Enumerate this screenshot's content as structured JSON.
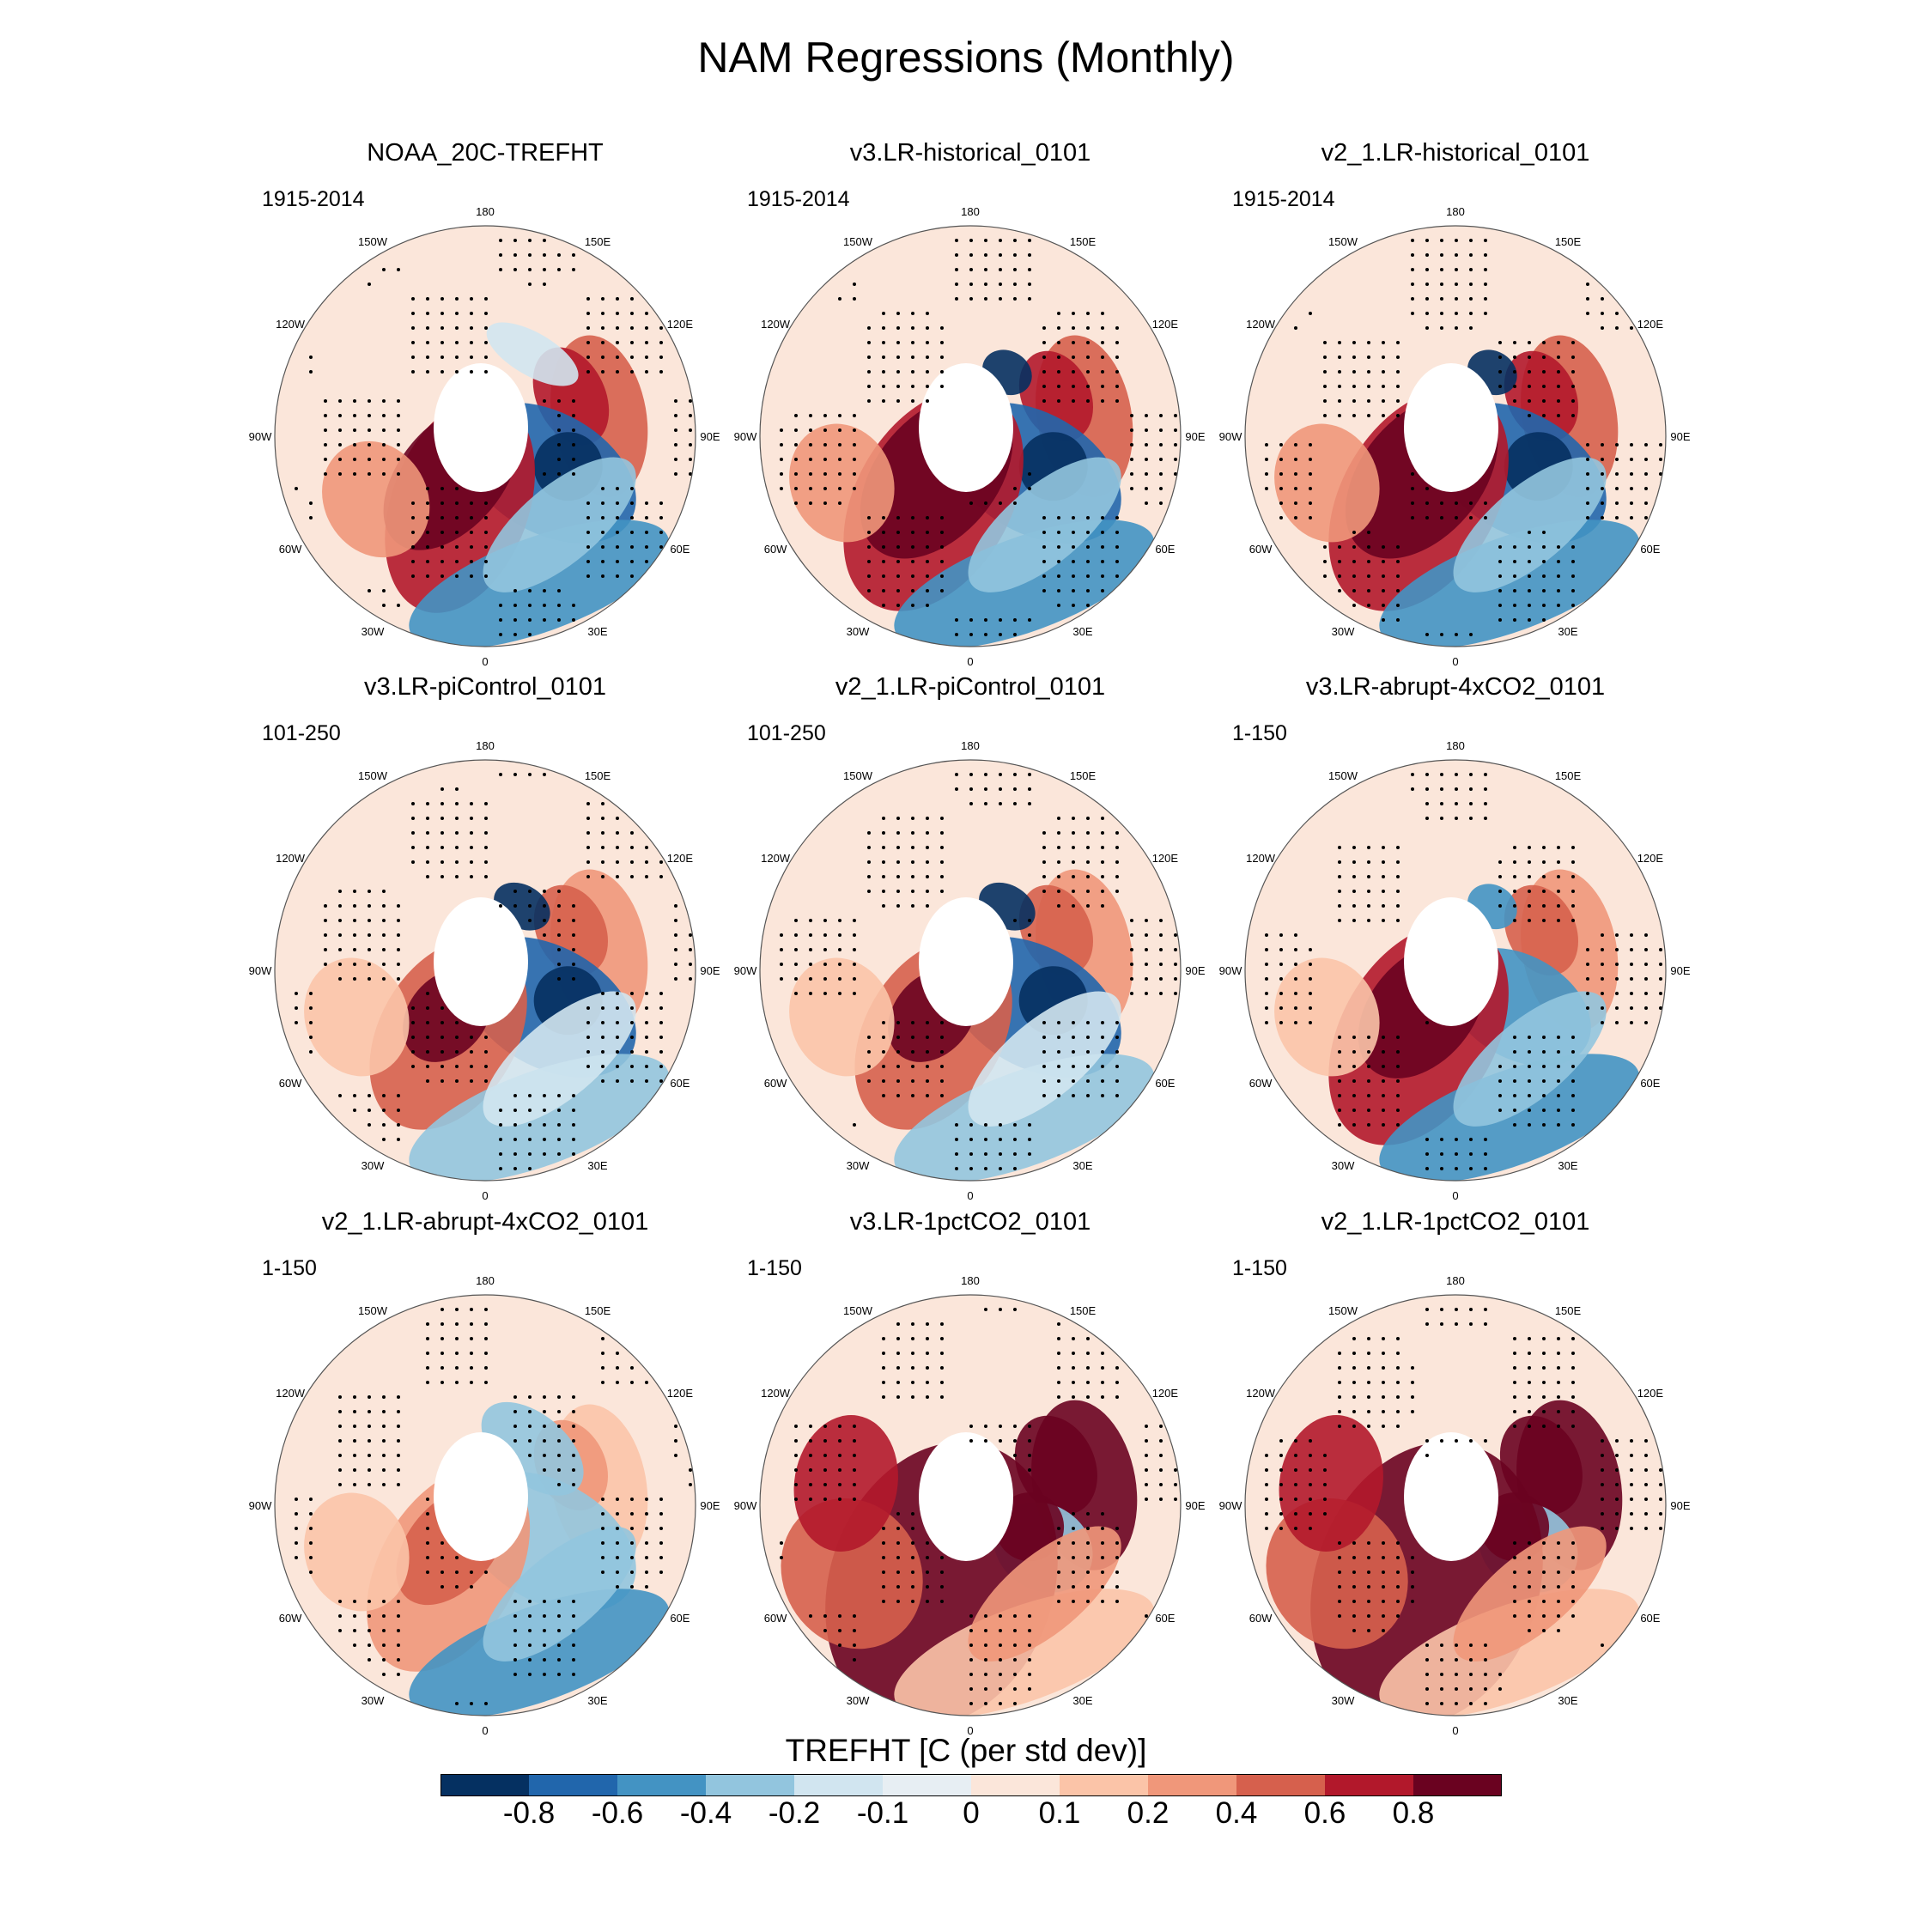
{
  "figure_title": "NAM Regressions (Monthly)",
  "panels": [
    {
      "title": "NOAA_20C-TREFHT",
      "period": "1915-2014",
      "style": "obs"
    },
    {
      "title": "v3.LR-historical_0101",
      "period": "1915-2014",
      "style": "hist"
    },
    {
      "title": "v2_1.LR-historical_0101",
      "period": "1915-2014",
      "style": "hist"
    },
    {
      "title": "v3.LR-piControl_0101",
      "period": "101-250",
      "style": "pi"
    },
    {
      "title": "v2_1.LR-piControl_0101",
      "period": "101-250",
      "style": "pi"
    },
    {
      "title": "v3.LR-abrupt-4xCO2_0101",
      "period": "1-150",
      "style": "abrupt"
    },
    {
      "title": "v2_1.LR-abrupt-4xCO2_0101",
      "period": "1-150",
      "style": "abrupt2"
    },
    {
      "title": "v3.LR-1pctCO2_0101",
      "period": "1-150",
      "style": "pct"
    },
    {
      "title": "v2_1.LR-1pctCO2_0101",
      "period": "1-150",
      "style": "pct"
    }
  ],
  "longitude_labels": [
    "180",
    "150E",
    "120E",
    "90E",
    "60E",
    "30E",
    "0",
    "30W",
    "60W",
    "90W",
    "120W",
    "150W"
  ],
  "colorbar": {
    "title": "TREFHT [C (per std dev)]",
    "colors": [
      "#053061",
      "#2166ac",
      "#4393c3",
      "#92c5de",
      "#d1e5f0",
      "#e7eef3",
      "#fbe6da",
      "#fbc4a8",
      "#f0977a",
      "#d6604d",
      "#b2182b",
      "#6a0220"
    ],
    "labels": [
      "-0.8",
      "-0.6",
      "-0.4",
      "-0.2",
      "-0.1",
      "0",
      "0.1",
      "0.2",
      "0.4",
      "0.6",
      "0.8"
    ]
  }
}
